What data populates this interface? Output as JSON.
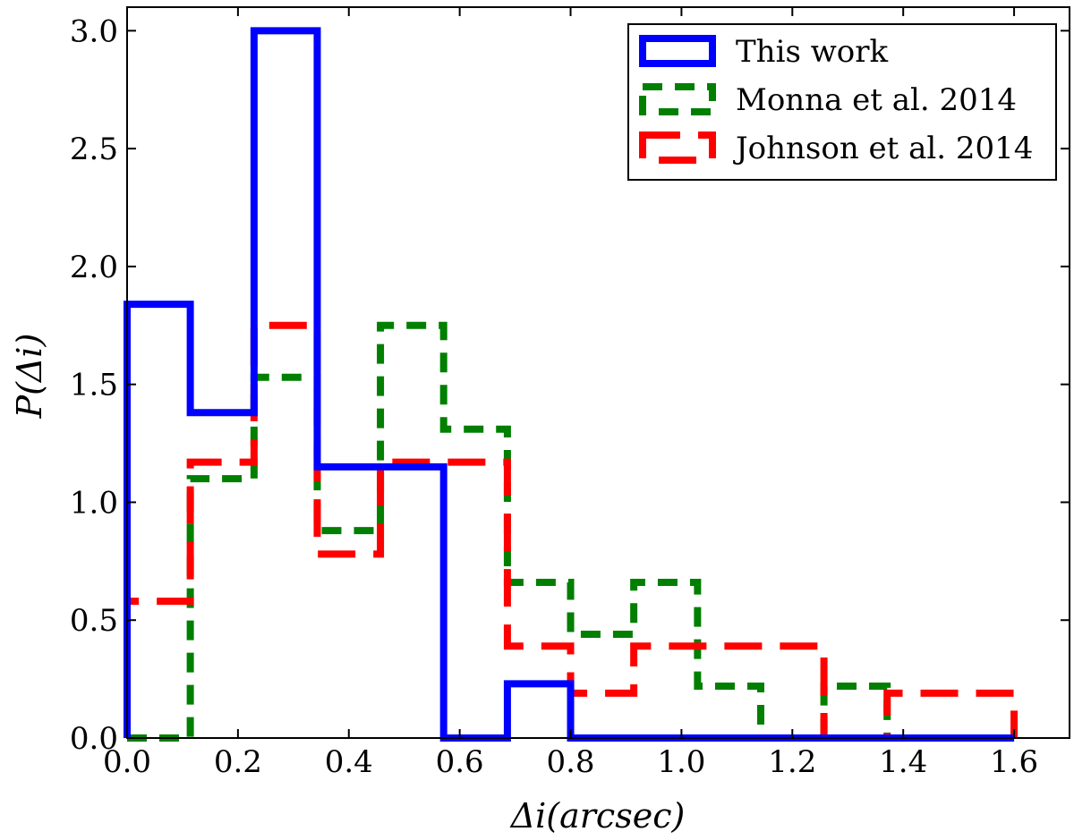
{
  "chart_data": {
    "type": "histogram-step",
    "xlabel": "Δi(arcsec)",
    "ylabel": "P(Δi)",
    "xlim": [
      0.0,
      1.7
    ],
    "ylim": [
      0.0,
      3.1
    ],
    "xticks": [
      "0.0",
      "0.2",
      "0.4",
      "0.6",
      "0.8",
      "1.0",
      "1.2",
      "1.4",
      "1.6"
    ],
    "xtick_values": [
      0.0,
      0.2,
      0.4,
      0.6,
      0.8,
      1.0,
      1.2,
      1.4,
      1.6
    ],
    "yticks": [
      "0.0",
      "0.5",
      "1.0",
      "1.5",
      "2.0",
      "2.5",
      "3.0"
    ],
    "ytick_values": [
      0.0,
      0.5,
      1.0,
      1.5,
      2.0,
      2.5,
      3.0
    ],
    "grid": false,
    "legend_position": "top-right",
    "series": [
      {
        "name": "This work",
        "color": "#0000ff",
        "linestyle": "solid",
        "edges": [
          0.0,
          0.114,
          0.229,
          0.343,
          0.457,
          0.571,
          0.686,
          0.8,
          0.914,
          1.029,
          1.143,
          1.257,
          1.371,
          1.486,
          1.6
        ],
        "values": [
          1.84,
          1.38,
          3.0,
          1.15,
          1.15,
          0.0,
          0.23,
          0.0,
          0.0,
          0.0,
          0.0,
          0.0,
          0.0,
          0.0
        ]
      },
      {
        "name": "Monna et al. 2014",
        "color": "#007f00",
        "linestyle": "dashed",
        "edges": [
          0.0,
          0.114,
          0.229,
          0.343,
          0.457,
          0.571,
          0.686,
          0.8,
          0.914,
          1.029,
          1.143,
          1.257,
          1.371,
          1.486,
          1.6
        ],
        "values": [
          0.0,
          1.1,
          1.53,
          0.88,
          1.75,
          1.31,
          0.66,
          0.44,
          0.66,
          0.22,
          0.0,
          0.22,
          0.0,
          0.0
        ]
      },
      {
        "name": "Johnson et al. 2014",
        "color": "#ff0000",
        "linestyle": "dashed-long",
        "edges": [
          0.0,
          0.114,
          0.229,
          0.343,
          0.457,
          0.571,
          0.686,
          0.8,
          0.914,
          1.029,
          1.143,
          1.257,
          1.371,
          1.486,
          1.6
        ],
        "values": [
          0.58,
          1.17,
          1.75,
          0.78,
          1.17,
          1.17,
          0.39,
          0.19,
          0.39,
          0.39,
          0.39,
          0.0,
          0.19,
          0.19
        ]
      }
    ]
  }
}
